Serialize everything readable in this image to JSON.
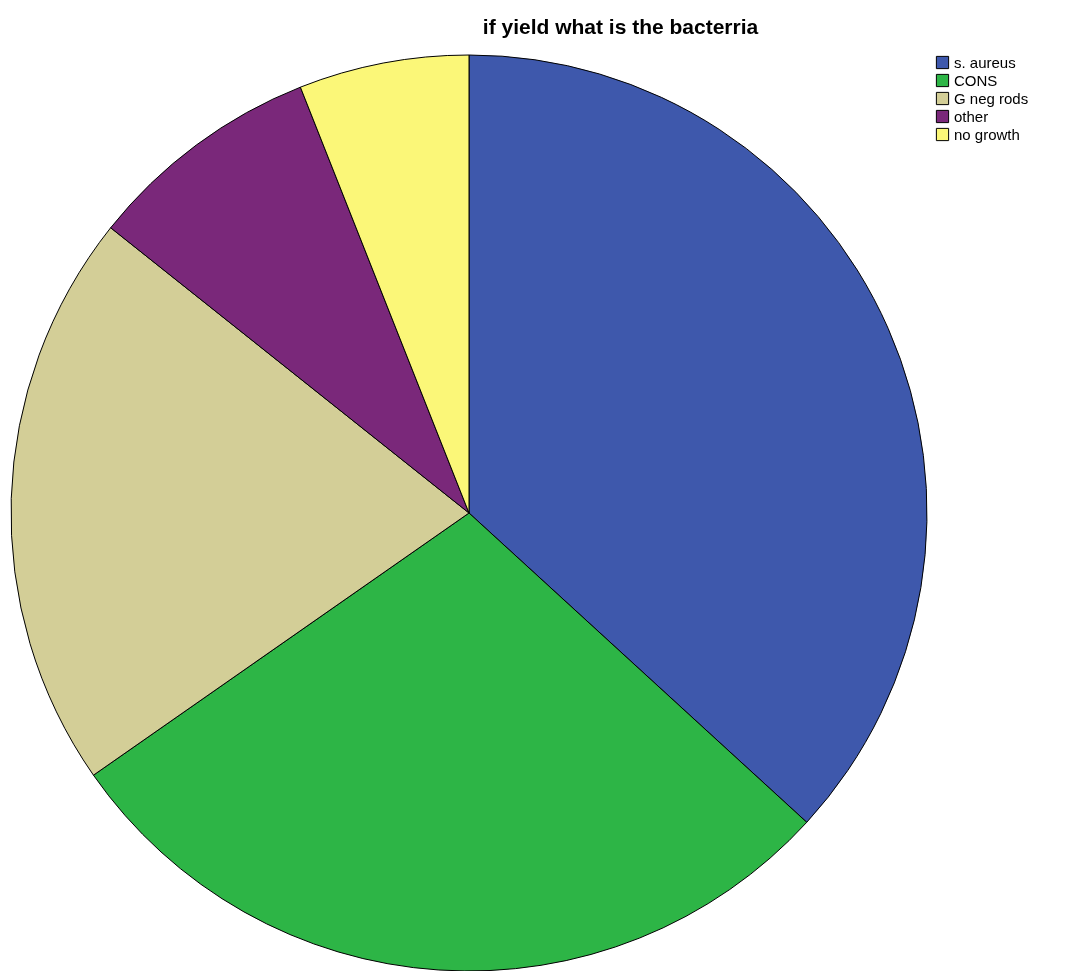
{
  "chart_data": {
    "type": "pie",
    "title": "if yield what is the bacterria",
    "categories": [
      "s. aureus",
      "CONS",
      "G neg rods",
      "other",
      "no growth"
    ],
    "values": [
      36.8,
      28.5,
      20.4,
      8.3,
      6.0
    ],
    "colors": [
      "#3e58ac",
      "#2db546",
      "#d3ce97",
      "#7a287a",
      "#fbf778"
    ],
    "legend": "top right"
  }
}
